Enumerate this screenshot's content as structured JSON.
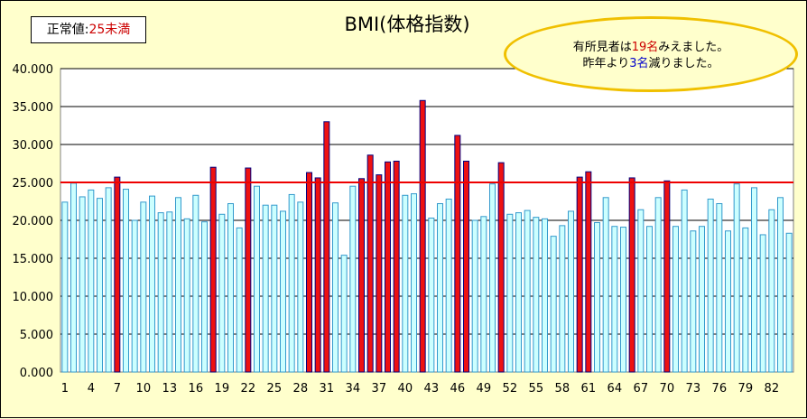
{
  "legend": {
    "label": "正常値:",
    "value": "25未満"
  },
  "callout": {
    "line1_a": "有所見者は",
    "line1_b": "19名",
    "line1_c": "みえました。",
    "line2_a": "昨年より",
    "line2_b": "3名",
    "line2_c": "減りました。"
  },
  "colors": {
    "normal_bar": "#ccffff",
    "normal_edge": "#3399cc",
    "high_bar": "#ee1111",
    "high_edge": "#000080",
    "threshold_line": "#ee0000",
    "gridline": "#000000"
  },
  "chart_data": {
    "type": "bar",
    "title": "BMI(体格指数)",
    "ylim": [
      0,
      40
    ],
    "ytick_labels": [
      "0.000",
      "5.000",
      "10.000",
      "15.000",
      "20.000",
      "25.000",
      "30.000",
      "35.000",
      "40.000"
    ],
    "xtick_labels": [
      "1",
      "4",
      "7",
      "10",
      "13",
      "16",
      "19",
      "22",
      "25",
      "28",
      "31",
      "34",
      "37",
      "40",
      "43",
      "46",
      "49",
      "52",
      "55",
      "58",
      "61",
      "64",
      "67",
      "70",
      "73",
      "76",
      "79",
      "82"
    ],
    "threshold": 25,
    "grid": true,
    "categories": [
      "1",
      "2",
      "3",
      "4",
      "5",
      "6",
      "7",
      "8",
      "9",
      "10",
      "11",
      "12",
      "13",
      "14",
      "15",
      "16",
      "17",
      "18",
      "19",
      "20",
      "21",
      "22",
      "23",
      "24",
      "25",
      "26",
      "27",
      "28",
      "29",
      "30",
      "31",
      "32",
      "33",
      "34",
      "35",
      "36",
      "37",
      "38",
      "39",
      "40",
      "41",
      "42",
      "43",
      "44",
      "45",
      "46",
      "47",
      "48",
      "49",
      "50",
      "51",
      "52",
      "53",
      "54",
      "55",
      "56",
      "57",
      "58",
      "59",
      "60",
      "61",
      "62",
      "63",
      "64",
      "65",
      "66",
      "67",
      "68",
      "69",
      "70",
      "71",
      "72",
      "73",
      "74",
      "75",
      "76",
      "77",
      "78",
      "79",
      "80",
      "81",
      "82",
      "83",
      "84"
    ],
    "values": [
      22.4,
      24.9,
      23.1,
      24.0,
      22.9,
      24.3,
      25.7,
      24.1,
      20.0,
      22.4,
      23.2,
      21.0,
      21.1,
      23.0,
      20.2,
      23.3,
      19.8,
      27.0,
      20.8,
      22.2,
      19.0,
      26.9,
      24.5,
      22.0,
      22.0,
      21.2,
      23.4,
      22.4,
      26.3,
      25.6,
      33.0,
      22.3,
      15.4,
      24.5,
      25.5,
      28.6,
      26.0,
      27.7,
      27.8,
      23.3,
      23.5,
      35.8,
      20.3,
      22.2,
      22.8,
      31.2,
      27.8,
      20.0,
      20.5,
      24.8,
      27.6,
      20.8,
      21.0,
      21.3,
      20.4,
      20.2,
      17.9,
      19.3,
      21.2,
      25.7,
      26.4,
      19.7,
      23.0,
      19.2,
      19.1,
      25.6,
      21.4,
      19.2,
      23.0,
      25.2,
      19.2,
      24.0,
      18.6,
      19.2,
      22.8,
      22.2,
      18.6,
      24.8,
      19.0,
      24.3,
      18.1,
      21.4,
      23.0,
      18.3
    ]
  }
}
